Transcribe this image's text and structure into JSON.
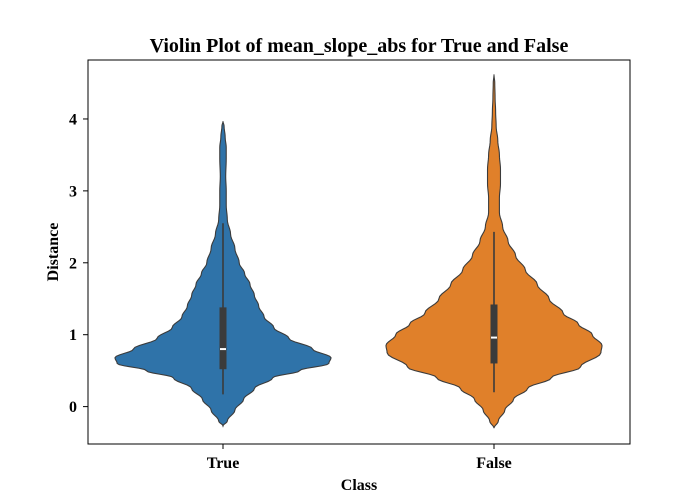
{
  "chart_data": {
    "type": "violin",
    "title": "Violin Plot of mean_slope_abs for True and False",
    "xlabel": "Class",
    "ylabel": "Distance",
    "categories": [
      "True",
      "False"
    ],
    "yticks": [
      0,
      1,
      2,
      3,
      4
    ],
    "ylim": [
      -0.52,
      4.82
    ],
    "grid": false,
    "series": [
      {
        "category": "True",
        "color": "#2f73a9",
        "range": [
          -0.27,
          3.97
        ],
        "box": {
          "whisker_low": 0.17,
          "q1": 0.52,
          "median": 0.8,
          "q3": 1.38,
          "whisker_high": 2.55
        },
        "density_profile": [
          [
            -0.27,
            0.0
          ],
          [
            -0.2,
            0.04
          ],
          [
            -0.05,
            0.11
          ],
          [
            0.1,
            0.19
          ],
          [
            0.25,
            0.29
          ],
          [
            0.4,
            0.46
          ],
          [
            0.5,
            0.71
          ],
          [
            0.6,
            0.98
          ],
          [
            0.68,
            1.0
          ],
          [
            0.8,
            0.83
          ],
          [
            0.95,
            0.61
          ],
          [
            1.1,
            0.47
          ],
          [
            1.25,
            0.38
          ],
          [
            1.4,
            0.33
          ],
          [
            1.55,
            0.29
          ],
          [
            1.7,
            0.25
          ],
          [
            1.85,
            0.2
          ],
          [
            2.0,
            0.15
          ],
          [
            2.2,
            0.11
          ],
          [
            2.4,
            0.07
          ],
          [
            2.6,
            0.04
          ],
          [
            2.8,
            0.03
          ],
          [
            3.0,
            0.03
          ],
          [
            3.2,
            0.025
          ],
          [
            3.45,
            0.03
          ],
          [
            3.6,
            0.03
          ],
          [
            3.75,
            0.02
          ],
          [
            3.9,
            0.01
          ],
          [
            3.97,
            0.0
          ]
        ]
      },
      {
        "category": "False",
        "color": "#e0802a",
        "range": [
          -0.3,
          4.62
        ],
        "box": {
          "whisker_low": 0.2,
          "q1": 0.6,
          "median": 0.96,
          "q3": 1.42,
          "whisker_high": 2.43
        },
        "density_profile": [
          [
            -0.3,
            0.0
          ],
          [
            -0.2,
            0.04
          ],
          [
            -0.05,
            0.1
          ],
          [
            0.1,
            0.18
          ],
          [
            0.25,
            0.31
          ],
          [
            0.4,
            0.53
          ],
          [
            0.55,
            0.8
          ],
          [
            0.75,
            0.99
          ],
          [
            0.85,
            1.0
          ],
          [
            1.0,
            0.91
          ],
          [
            1.15,
            0.78
          ],
          [
            1.3,
            0.64
          ],
          [
            1.5,
            0.51
          ],
          [
            1.7,
            0.4
          ],
          [
            1.9,
            0.29
          ],
          [
            2.1,
            0.2
          ],
          [
            2.3,
            0.13
          ],
          [
            2.5,
            0.08
          ],
          [
            2.7,
            0.05
          ],
          [
            2.9,
            0.05
          ],
          [
            3.1,
            0.06
          ],
          [
            3.3,
            0.06
          ],
          [
            3.5,
            0.05
          ],
          [
            3.7,
            0.035
          ],
          [
            3.9,
            0.02
          ],
          [
            4.1,
            0.015
          ],
          [
            4.3,
            0.01
          ],
          [
            4.5,
            0.007
          ],
          [
            4.62,
            0.0
          ]
        ]
      }
    ]
  }
}
